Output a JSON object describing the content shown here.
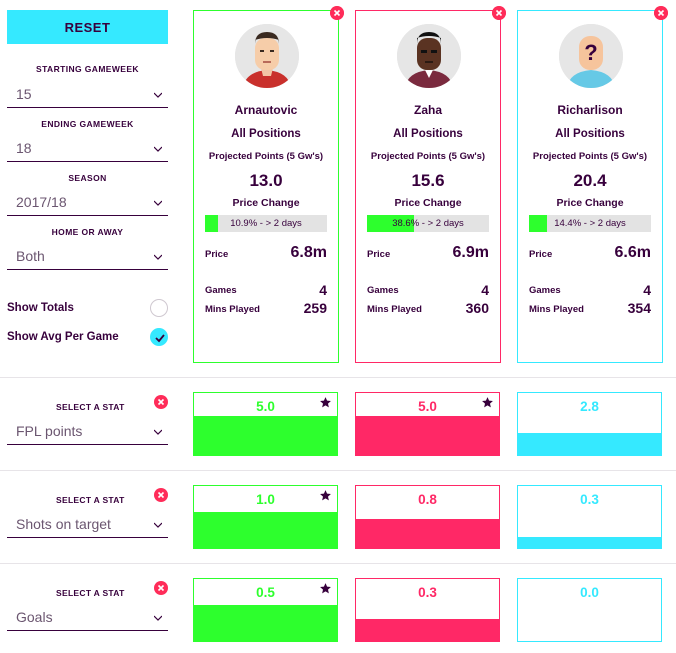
{
  "controls": {
    "reset_label": "RESET",
    "starting_gameweek": {
      "label": "STARTING GAMEWEEK",
      "value": "15"
    },
    "ending_gameweek": {
      "label": "ENDING GAMEWEEK",
      "value": "18"
    },
    "season": {
      "label": "SEASON",
      "value": "2017/18"
    },
    "home_or_away": {
      "label": "HOME OR AWAY",
      "value": "Both"
    },
    "show_totals": {
      "label": "Show Totals",
      "checked": false
    },
    "show_avg": {
      "label": "Show Avg Per Game",
      "checked": true
    }
  },
  "players": [
    {
      "name": "Arnautovic",
      "position": "All Positions",
      "projected_label": "Projected Points (5 Gw's)",
      "projected": "13.0",
      "price_change_label": "Price Change",
      "price_change_text": "10.9% - > 2 days",
      "price_change_pct": 10.9,
      "price_label": "Price",
      "price": "6.8m",
      "games_label": "Games",
      "games": "4",
      "mins_label": "Mins Played",
      "mins": "259",
      "color": "#2dff2d"
    },
    {
      "name": "Zaha",
      "position": "All Positions",
      "projected_label": "Projected Points (5 Gw's)",
      "projected": "15.6",
      "price_change_label": "Price Change",
      "price_change_text": "38.6% - > 2 days",
      "price_change_pct": 38.6,
      "price_label": "Price",
      "price": "6.9m",
      "games_label": "Games",
      "games": "4",
      "mins_label": "Mins Played",
      "mins": "360",
      "color": "#ff2866"
    },
    {
      "name": "Richarlison",
      "position": "All Positions",
      "projected_label": "Projected Points (5 Gw's)",
      "projected": "20.4",
      "price_change_label": "Price Change",
      "price_change_text": "14.4% - > 2 days",
      "price_change_pct": 14.4,
      "price_label": "Price",
      "price": "6.6m",
      "games_label": "Games",
      "games": "4",
      "mins_label": "Mins Played",
      "mins": "354",
      "color": "#35e9ff"
    }
  ],
  "stats": [
    {
      "label": "SELECT A STAT",
      "stat": "FPL points",
      "values": [
        "5.0",
        "5.0",
        "2.8"
      ],
      "fill": [
        0.63,
        0.63,
        0.35
      ],
      "star": [
        true,
        true,
        false
      ]
    },
    {
      "label": "SELECT A STAT",
      "stat": "Shots on target",
      "values": [
        "1.0",
        "0.8",
        "0.3"
      ],
      "fill": [
        0.58,
        0.46,
        0.17
      ],
      "star": [
        true,
        false,
        false
      ]
    },
    {
      "label": "SELECT A STAT",
      "stat": "Goals",
      "values": [
        "0.5",
        "0.3",
        "0.0"
      ],
      "fill": [
        0.58,
        0.35,
        0
      ],
      "star": [
        true,
        false,
        false
      ]
    }
  ],
  "icons": [
    "chevron-down-icon",
    "close-icon",
    "checkmark-icon",
    "star-icon",
    "avatar-icon",
    "question-mark-icon"
  ]
}
